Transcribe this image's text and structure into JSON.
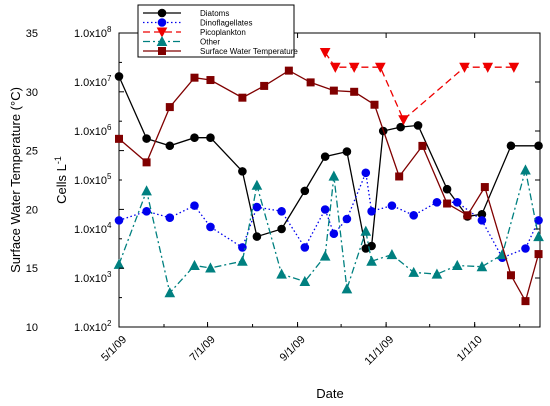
{
  "chart_data": {
    "type": "line",
    "xlabel": "Date",
    "ylabel_left": "Surface Water Temperature (°C)",
    "ylabel_right": "Cells L-1",
    "x_ticks": [
      {
        "label": "5/1/09",
        "date": "2009-05-01"
      },
      {
        "label": "7/1/09",
        "date": "2009-07-01"
      },
      {
        "label": "9/1/09",
        "date": "2009-09-01"
      },
      {
        "label": "11/1/09",
        "date": "2009-11-01"
      },
      {
        "label": "1/1/10",
        "date": "2010-01-01"
      }
    ],
    "xlim": [
      "2009-05-01",
      "2010-02-15"
    ],
    "left_axis": {
      "ylim": [
        10,
        35
      ],
      "ticks": [
        10,
        15,
        20,
        25,
        30,
        35
      ]
    },
    "right_axis": {
      "scale": "log",
      "ylim": [
        100,
        100000000
      ],
      "ticks": [
        {
          "value": 100,
          "label": "1.0x10",
          "exp": "2"
        },
        {
          "value": 1000,
          "label": "1.0x10",
          "exp": "3"
        },
        {
          "value": 10000,
          "label": "1.0x10",
          "exp": "4"
        },
        {
          "value": 100000,
          "label": "1.0x10",
          "exp": "5"
        },
        {
          "value": 1000000,
          "label": "1.0x10",
          "exp": "6"
        },
        {
          "value": 10000000,
          "label": "1.0x10",
          "exp": "7"
        },
        {
          "value": 100000000,
          "label": "1.0x10",
          "exp": "8"
        }
      ]
    },
    "series": [
      {
        "name": "Diatoms",
        "axis": "right",
        "color": "#000000",
        "marker": "circle",
        "line": "solid",
        "points": [
          [
            "2009-05-01",
            13000000
          ],
          [
            "2009-05-20",
            700000
          ],
          [
            "2009-06-05",
            500000
          ],
          [
            "2009-06-22",
            730000
          ],
          [
            "2009-07-03",
            730000
          ],
          [
            "2009-07-25",
            150000
          ],
          [
            "2009-08-04",
            7000
          ],
          [
            "2009-08-21",
            10000
          ],
          [
            "2009-09-06",
            60000
          ],
          [
            "2009-09-20",
            300000
          ],
          [
            "2009-10-05",
            380000
          ],
          [
            "2009-10-18",
            4000
          ],
          [
            "2009-10-22",
            4500
          ],
          [
            "2009-10-30",
            1000000
          ],
          [
            "2009-11-11",
            1200000
          ],
          [
            "2009-11-23",
            1300000
          ],
          [
            "2009-12-13",
            65000
          ],
          [
            "2009-12-27",
            18000
          ],
          [
            "2010-01-06",
            20000
          ],
          [
            "2010-01-26",
            500000
          ],
          [
            "2010-02-14",
            500000
          ]
        ]
      },
      {
        "name": "Dinoflagellates",
        "axis": "right",
        "color": "#0000ee",
        "marker": "circle",
        "line": "dotted",
        "points": [
          [
            "2009-05-01",
            15000
          ],
          [
            "2009-05-20",
            23000
          ],
          [
            "2009-06-05",
            17000
          ],
          [
            "2009-06-22",
            30000
          ],
          [
            "2009-07-03",
            11000
          ],
          [
            "2009-07-25",
            4200
          ],
          [
            "2009-08-04",
            28000
          ],
          [
            "2009-08-21",
            23000
          ],
          [
            "2009-09-06",
            4200
          ],
          [
            "2009-09-20",
            25000
          ],
          [
            "2009-09-26",
            8000
          ],
          [
            "2009-10-05",
            16000
          ],
          [
            "2009-10-18",
            140000
          ],
          [
            "2009-10-22",
            23000
          ],
          [
            "2009-11-05",
            30000
          ],
          [
            "2009-11-20",
            19000
          ],
          [
            "2009-12-06",
            35000
          ],
          [
            "2009-12-20",
            35000
          ],
          [
            "2010-01-06",
            15000
          ],
          [
            "2010-01-20",
            2600
          ],
          [
            "2010-02-05",
            4000
          ],
          [
            "2010-02-14",
            15000
          ]
        ]
      },
      {
        "name": "Picoplankton",
        "axis": "right",
        "color": "#ee0000",
        "marker": "triangle-down",
        "line": "dashed",
        "points": [
          [
            "2009-09-20",
            40000000
          ],
          [
            "2009-09-27",
            20000000
          ],
          [
            "2009-10-10",
            20000000
          ],
          [
            "2009-10-28",
            20000000
          ],
          [
            "2009-11-13",
            1700000
          ],
          [
            "2009-12-25",
            20000000
          ],
          [
            "2010-01-10",
            20000000
          ],
          [
            "2010-01-28",
            20000000
          ]
        ]
      },
      {
        "name": "Other",
        "axis": "right",
        "color": "#008080",
        "marker": "triangle-up",
        "line": "dashdot",
        "points": [
          [
            "2009-05-01",
            1900
          ],
          [
            "2009-05-20",
            60000
          ],
          [
            "2009-06-05",
            500
          ],
          [
            "2009-06-22",
            1800
          ],
          [
            "2009-07-03",
            1600
          ],
          [
            "2009-07-25",
            2200
          ],
          [
            "2009-08-04",
            78000
          ],
          [
            "2009-08-21",
            1200
          ],
          [
            "2009-09-06",
            850
          ],
          [
            "2009-09-20",
            2800
          ],
          [
            "2009-09-26",
            120000
          ],
          [
            "2009-10-05",
            600
          ],
          [
            "2009-10-18",
            9000
          ],
          [
            "2009-10-22",
            2200
          ],
          [
            "2009-11-05",
            3000
          ],
          [
            "2009-11-20",
            1300
          ],
          [
            "2009-12-06",
            1200
          ],
          [
            "2009-12-20",
            1800
          ],
          [
            "2010-01-06",
            1700
          ],
          [
            "2010-01-20",
            3000
          ],
          [
            "2010-02-05",
            160000
          ],
          [
            "2010-02-14",
            7000
          ]
        ]
      },
      {
        "name": "Surface Water Temperature",
        "axis": "left",
        "color": "#800000",
        "marker": "square",
        "line": "solid",
        "points": [
          [
            "2009-05-01",
            26.0
          ],
          [
            "2009-05-20",
            24.0
          ],
          [
            "2009-06-05",
            28.7
          ],
          [
            "2009-06-22",
            31.2
          ],
          [
            "2009-07-03",
            31.0
          ],
          [
            "2009-07-25",
            29.5
          ],
          [
            "2009-08-09",
            30.5
          ],
          [
            "2009-08-26",
            31.8
          ],
          [
            "2009-09-10",
            30.8
          ],
          [
            "2009-09-26",
            30.1
          ],
          [
            "2009-10-10",
            30.0
          ],
          [
            "2009-10-24",
            28.9
          ],
          [
            "2009-11-10",
            22.8
          ],
          [
            "2009-11-26",
            25.4
          ],
          [
            "2009-12-13",
            20.5
          ],
          [
            "2009-12-27",
            19.5
          ],
          [
            "2010-01-08",
            21.9
          ],
          [
            "2010-01-26",
            14.4
          ],
          [
            "2010-02-05",
            12.2
          ],
          [
            "2010-02-14",
            16.2
          ]
        ]
      }
    ],
    "legend_position": "top-center",
    "grid": false
  }
}
